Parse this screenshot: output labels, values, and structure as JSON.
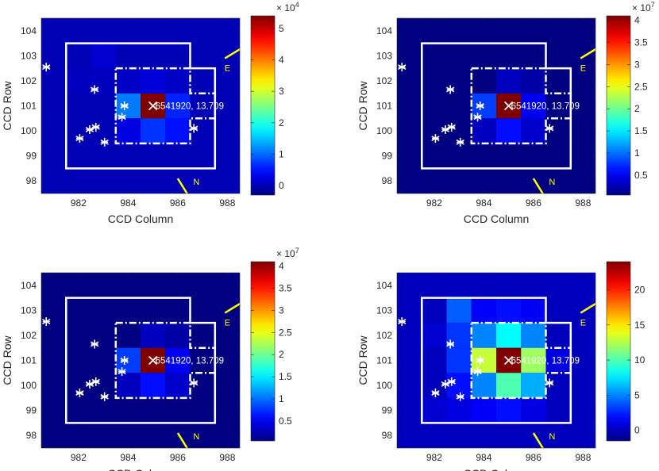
{
  "chart_data": [
    {
      "type": "heatmap",
      "title": "",
      "xlabel": "CCD Column",
      "ylabel": "CCD Row",
      "xlim": [
        980.5,
        988.5
      ],
      "ylim": [
        97.5,
        104.5
      ],
      "xticks": [
        982,
        984,
        986,
        988
      ],
      "yticks": [
        98,
        99,
        100,
        101,
        102,
        103,
        104
      ],
      "colorbar": {
        "min": -0.3,
        "max": 5.4,
        "exponent": "× 10^4",
        "ticks": [
          0,
          1,
          2,
          3,
          4,
          5
        ]
      },
      "cells": [
        {
          "col": 983,
          "row": 103,
          "value": 0.15
        },
        {
          "col": 982,
          "row": 102,
          "value": 0.05
        },
        {
          "col": 983,
          "row": 102,
          "value": 0.05
        },
        {
          "col": 984,
          "row": 101,
          "value": 1.1
        },
        {
          "col": 985,
          "row": 101,
          "value": 5.4
        },
        {
          "col": 986,
          "row": 101,
          "value": 0.6
        },
        {
          "col": 984,
          "row": 100,
          "value": 0.25
        },
        {
          "col": 985,
          "row": 100,
          "value": 0.7
        },
        {
          "col": 986,
          "row": 100,
          "value": 0.5
        },
        {
          "col": 984,
          "row": 102,
          "value": 0.1
        },
        {
          "col": 985,
          "row": 102,
          "value": 0.2
        },
        {
          "col": 986,
          "row": 102,
          "value": 0.1
        }
      ],
      "annotation": "6541920, 13.709"
    },
    {
      "type": "heatmap",
      "title": "",
      "xlabel": "CCD Column",
      "ylabel": "CCD Row",
      "xlim": [
        980.5,
        988.5
      ],
      "ylim": [
        97.5,
        104.5
      ],
      "xticks": [
        982,
        984,
        986,
        988
      ],
      "yticks": [
        98,
        99,
        100,
        101,
        102,
        103,
        104
      ],
      "colorbar": {
        "min": 0.05,
        "max": 4.1,
        "exponent": "× 10^7",
        "ticks": [
          0.5,
          1,
          1.5,
          2,
          2.5,
          3,
          3.5,
          4
        ]
      },
      "cells": [
        {
          "col": 984,
          "row": 101,
          "value": 0.8
        },
        {
          "col": 985,
          "row": 101,
          "value": 4.1
        },
        {
          "col": 986,
          "row": 101,
          "value": 0.5
        },
        {
          "col": 984,
          "row": 100,
          "value": 0.3
        },
        {
          "col": 985,
          "row": 100,
          "value": 0.6
        },
        {
          "col": 986,
          "row": 100,
          "value": 0.35
        },
        {
          "col": 985,
          "row": 102,
          "value": 0.3
        },
        {
          "col": 986,
          "row": 102,
          "value": 0.2
        }
      ],
      "annotation": "6541920, 13.709"
    },
    {
      "type": "heatmap",
      "title": "",
      "xlabel": "CCD Column",
      "ylabel": "CCD Row",
      "xlim": [
        980.5,
        988.5
      ],
      "ylim": [
        97.5,
        104.5
      ],
      "xticks": [
        982,
        984,
        986,
        988
      ],
      "yticks": [
        98,
        99,
        100,
        101,
        102,
        103,
        104
      ],
      "colorbar": {
        "min": 0.05,
        "max": 4.1,
        "exponent": "× 10^7",
        "ticks": [
          0.5,
          1,
          1.5,
          2,
          2.5,
          3,
          3.5,
          4
        ]
      },
      "cells": [
        {
          "col": 984,
          "row": 101,
          "value": 0.8
        },
        {
          "col": 985,
          "row": 101,
          "value": 4.1
        },
        {
          "col": 986,
          "row": 101,
          "value": 0.5
        },
        {
          "col": 984,
          "row": 100,
          "value": 0.3
        },
        {
          "col": 985,
          "row": 100,
          "value": 0.6
        },
        {
          "col": 986,
          "row": 100,
          "value": 0.35
        },
        {
          "col": 985,
          "row": 102,
          "value": 0.3
        },
        {
          "col": 986,
          "row": 102,
          "value": 0.2
        }
      ],
      "annotation": "6541920, 13.709"
    },
    {
      "type": "heatmap",
      "title": "",
      "xlabel": "CCD Column",
      "ylabel": "CCD Row",
      "xlim": [
        980.5,
        988.5
      ],
      "ylim": [
        97.5,
        104.5
      ],
      "xticks": [
        982,
        984,
        986,
        988
      ],
      "yticks": [
        98,
        99,
        100,
        101,
        102,
        103,
        104
      ],
      "colorbar": {
        "min": -1.5,
        "max": 24,
        "exponent": "",
        "ticks": [
          0,
          5,
          10,
          15,
          20
        ]
      },
      "cells": [
        {
          "col": 983,
          "row": 103,
          "value": 4
        },
        {
          "col": 984,
          "row": 103,
          "value": 1.5
        },
        {
          "col": 985,
          "row": 103,
          "value": 2
        },
        {
          "col": 986,
          "row": 103,
          "value": 1.5
        },
        {
          "col": 982,
          "row": 102,
          "value": 0.5
        },
        {
          "col": 983,
          "row": 102,
          "value": 3
        },
        {
          "col": 984,
          "row": 102,
          "value": 5
        },
        {
          "col": 985,
          "row": 102,
          "value": 8
        },
        {
          "col": 986,
          "row": 102,
          "value": 5
        },
        {
          "col": 983,
          "row": 101,
          "value": 3
        },
        {
          "col": 984,
          "row": 101,
          "value": 13
        },
        {
          "col": 985,
          "row": 101,
          "value": 24
        },
        {
          "col": 986,
          "row": 101,
          "value": 12
        },
        {
          "col": 987,
          "row": 101,
          "value": 1
        },
        {
          "col": 983,
          "row": 100,
          "value": 2
        },
        {
          "col": 984,
          "row": 100,
          "value": 5
        },
        {
          "col": 985,
          "row": 100,
          "value": 10
        },
        {
          "col": 986,
          "row": 100,
          "value": 6
        },
        {
          "col": 982,
          "row": 99,
          "value": 0.5
        },
        {
          "col": 983,
          "row": 99,
          "value": 1
        },
        {
          "col": 984,
          "row": 99,
          "value": 1.5
        },
        {
          "col": 985,
          "row": 99,
          "value": 2
        },
        {
          "col": 986,
          "row": 99,
          "value": 1
        }
      ],
      "annotation": "6541920, 13.709"
    }
  ],
  "stars": [
    {
      "col": 980.7,
      "row": 102.55
    },
    {
      "col": 982.65,
      "row": 101.65
    },
    {
      "col": 983.85,
      "row": 101.0
    },
    {
      "col": 983.75,
      "row": 100.55
    },
    {
      "col": 982.45,
      "row": 100.05
    },
    {
      "col": 982.7,
      "row": 100.15
    },
    {
      "col": 982.05,
      "row": 99.7
    },
    {
      "col": 983.05,
      "row": 99.55
    },
    {
      "col": 986.65,
      "row": 100.1
    }
  ],
  "target": {
    "col": 985.0,
    "row": 101.0
  },
  "compass": {
    "east": "E",
    "north": "N"
  }
}
